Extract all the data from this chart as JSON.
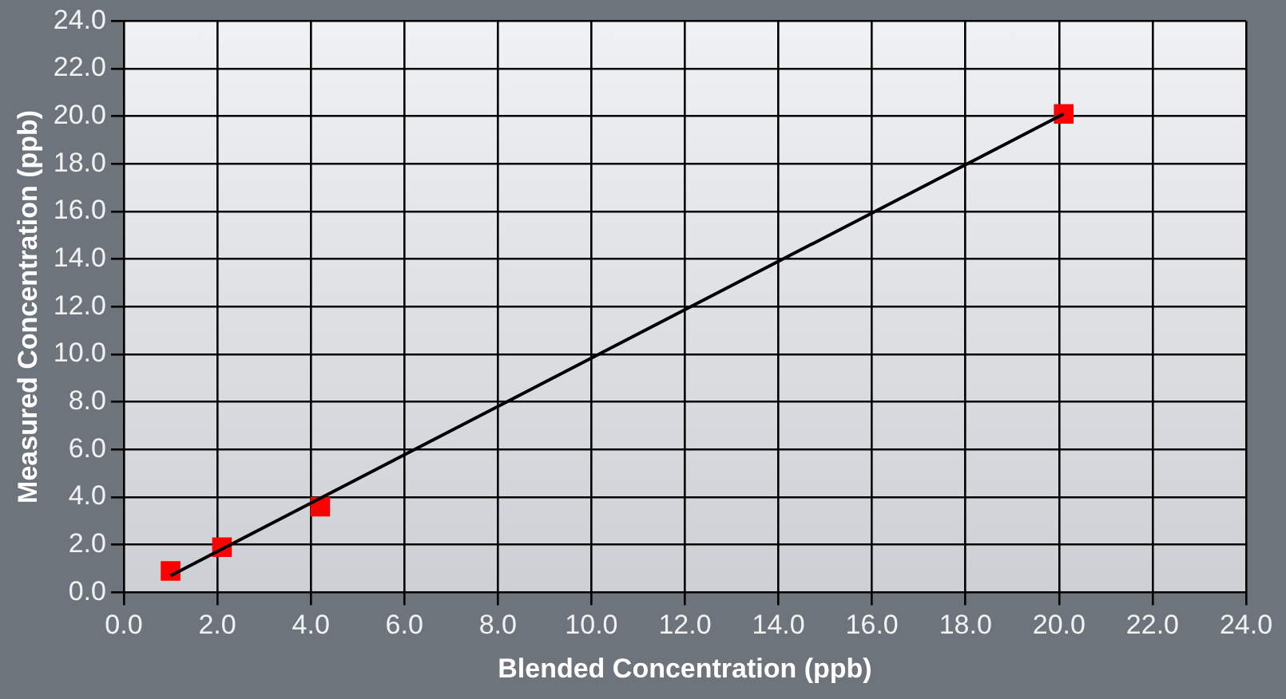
{
  "chart_data": {
    "type": "scatter",
    "xlabel": "Blended Concentration (ppb)",
    "ylabel": "Measured Concentration (ppb)",
    "xlim": [
      0,
      24
    ],
    "ylim": [
      0,
      24
    ],
    "xticks": [
      {
        "value": 0,
        "label": "0.0"
      },
      {
        "value": 2,
        "label": "2.0"
      },
      {
        "value": 4,
        "label": "4.0"
      },
      {
        "value": 6,
        "label": "6.0"
      },
      {
        "value": 8,
        "label": "8.0"
      },
      {
        "value": 10,
        "label": "10.0"
      },
      {
        "value": 12,
        "label": "12.0"
      },
      {
        "value": 14,
        "label": "14.0"
      },
      {
        "value": 16,
        "label": "16.0"
      },
      {
        "value": 18,
        "label": "18.0"
      },
      {
        "value": 20,
        "label": "20.0"
      },
      {
        "value": 22,
        "label": "22.0"
      },
      {
        "value": 24,
        "label": "24.0"
      }
    ],
    "yticks": [
      {
        "value": 0,
        "label": "0.0"
      },
      {
        "value": 2,
        "label": "2.0"
      },
      {
        "value": 4,
        "label": "4.0"
      },
      {
        "value": 6,
        "label": "6.0"
      },
      {
        "value": 8,
        "label": "8.0"
      },
      {
        "value": 10,
        "label": "10.0"
      },
      {
        "value": 12,
        "label": "12.0"
      },
      {
        "value": 14,
        "label": "14.0"
      },
      {
        "value": 16,
        "label": "16.0"
      },
      {
        "value": 18,
        "label": "18.0"
      },
      {
        "value": 20,
        "label": "20.0"
      },
      {
        "value": 22,
        "label": "22.0"
      },
      {
        "value": 24,
        "label": "24.0"
      }
    ],
    "grid": true,
    "legend": false,
    "series": [
      {
        "type": "line",
        "marker": "none",
        "color": "#000000",
        "x": [
          1.0,
          20.1
        ],
        "values": [
          0.7,
          20.1
        ]
      },
      {
        "marker": "square",
        "color": "#ff0000",
        "x": [
          1.0,
          2.1,
          4.2,
          20.1
        ],
        "values": [
          0.9,
          1.9,
          3.6,
          20.1
        ]
      }
    ]
  }
}
